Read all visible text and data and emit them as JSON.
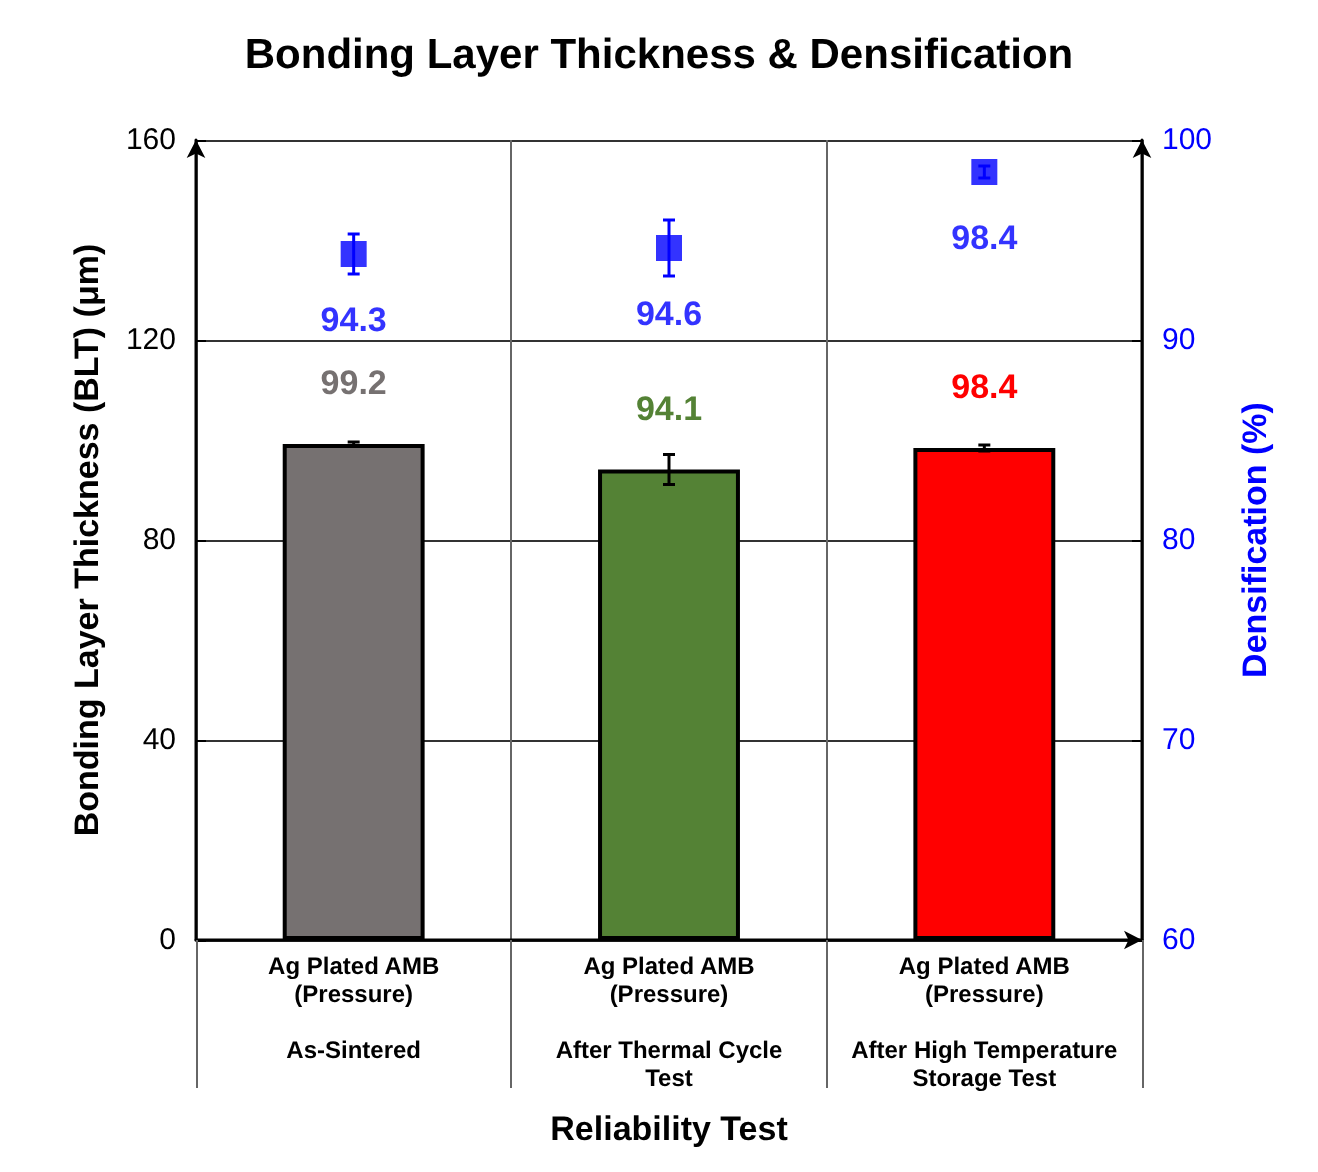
{
  "chart_data": {
    "type": "bar",
    "title": "Bonding Layer Thickness & Densification",
    "xlabel": "Reliability Test",
    "ylabel": "Bonding Layer Thickness (BLT) (μm)",
    "y2label": "Densification (%)",
    "categories": [
      "Ag Plated AMB\n(Pressure)\n\nAs-Sintered",
      "Ag Plated AMB\n(Pressure)\n\nAfter Thermal Cycle\nTest",
      "Ag Plated AMB\n(Pressure)\n\nAfter High Temperature\nStorage Test"
    ],
    "series": [
      {
        "colors": [
          "#767171",
          "#548235",
          "#ff0000"
        ],
        "values": [
          99.2,
          94.1,
          98.4
        ],
        "errors": [
          0.4,
          3,
          0.6
        ]
      },
      {
        "type": "scatter",
        "axis": "y2",
        "color": "#0000ff",
        "marker": "square",
        "values": [
          94.3,
          94.6,
          98.4
        ],
        "errors": [
          1,
          1.4,
          0.3
        ]
      }
    ],
    "ylim": [
      0,
      160
    ],
    "yticks": [
      0,
      40,
      80,
      120,
      160
    ],
    "y2lim": [
      60,
      100
    ],
    "y2ticks": [
      60,
      70,
      80,
      90,
      100
    ],
    "grid": true,
    "data_labels": true
  }
}
